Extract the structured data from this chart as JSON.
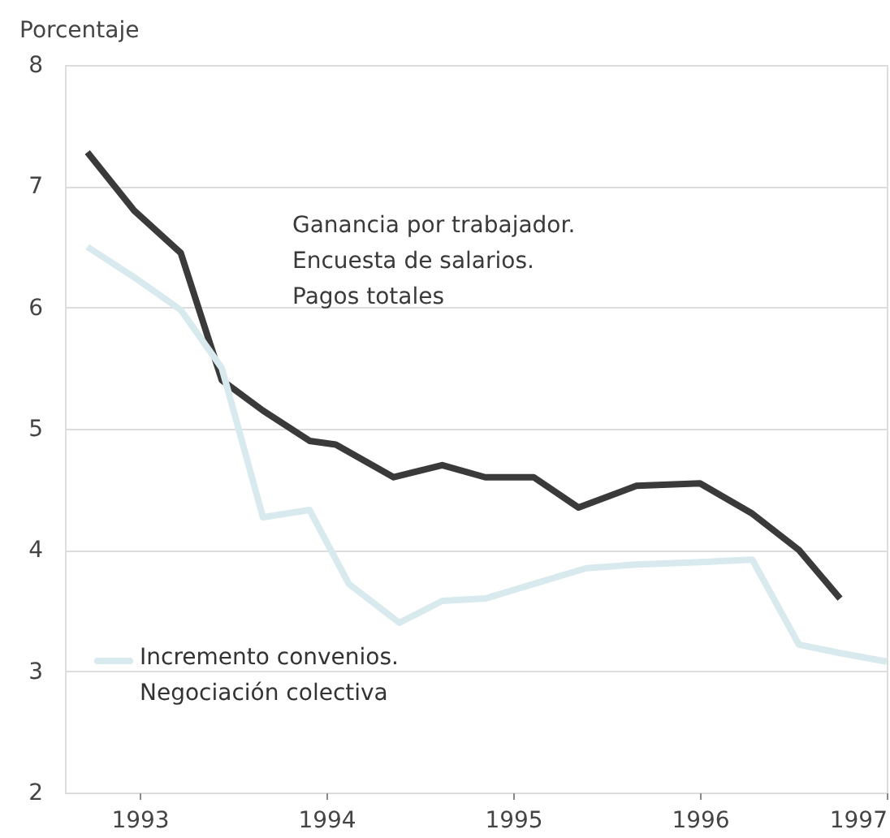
{
  "chart_data": {
    "type": "line",
    "ylabel": "Porcentaje",
    "ylim": [
      2,
      8
    ],
    "yticks": [
      2,
      3,
      4,
      5,
      6,
      7,
      8
    ],
    "xlim": [
      1992.6,
      1997.0
    ],
    "xticks": [
      1993,
      1994,
      1995,
      1996,
      1997
    ],
    "grid": "y",
    "marker": "none",
    "line_style": "solid",
    "series": [
      {
        "name": "Ganancia por trabajador.\nEncuesta de salarios.\nPagos totales",
        "color": "#3a3a3a",
        "x": [
          1992.72,
          1992.97,
          1993.22,
          1993.44,
          1993.66,
          1993.91,
          1994.05,
          1994.36,
          1994.62,
          1994.85,
          1995.11,
          1995.35,
          1995.66,
          1996.0,
          1996.28,
          1996.53,
          1996.75
        ],
        "values": [
          7.28,
          6.8,
          6.45,
          5.4,
          5.15,
          4.9,
          4.87,
          4.6,
          4.7,
          4.6,
          4.6,
          4.35,
          4.53,
          4.55,
          4.3,
          4.0,
          3.6
        ]
      },
      {
        "name": "Incremento convenios.\nNegociación colectiva",
        "color": "#d8eaee",
        "x": [
          1992.72,
          1992.97,
          1993.22,
          1993.44,
          1993.66,
          1993.91,
          1994.12,
          1994.39,
          1994.62,
          1994.85,
          1995.11,
          1995.39,
          1995.66,
          1996.0,
          1996.28,
          1996.53,
          1996.75,
          1997.0
        ],
        "values": [
          6.5,
          6.25,
          5.98,
          5.5,
          4.27,
          4.33,
          3.72,
          3.4,
          3.58,
          3.6,
          3.72,
          3.85,
          3.88,
          3.9,
          3.92,
          3.22,
          3.15,
          3.08
        ]
      }
    ]
  }
}
